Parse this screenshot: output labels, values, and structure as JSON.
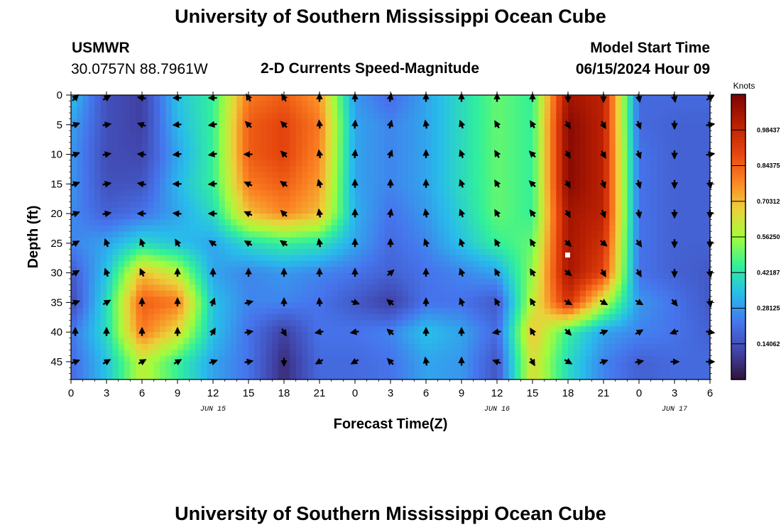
{
  "header": {
    "title": "University of Southern Mississippi Ocean Cube",
    "station_name": "USMWR",
    "station_coords": "30.0757N  88.7961W",
    "product": "2-D Currents Speed-Magnitude",
    "model_start_label": "Model Start Time",
    "model_start_value": "06/15/2024 Hour 09"
  },
  "footer": {
    "title": "University of Southern Mississippi Ocean Cube"
  },
  "chart_data": {
    "type": "heatmap",
    "title": "2-D Currents Speed-Magnitude",
    "xlabel": "Forecast Time(Z)",
    "ylabel": "Depth (ft)",
    "x_tick_labels": [
      "0",
      "3",
      "6",
      "9",
      "12",
      "15",
      "18",
      "21",
      "0",
      "3",
      "6",
      "9",
      "12",
      "15",
      "18",
      "21",
      "0",
      "3",
      "6"
    ],
    "x_range_hours": [
      0,
      54
    ],
    "date_labels": [
      {
        "label": "JUN 15",
        "hour": 12
      },
      {
        "label": "JUN 16",
        "hour": 36
      },
      {
        "label": "JUN 17",
        "hour": 51
      }
    ],
    "y_ticks": [
      0,
      5,
      10,
      15,
      20,
      25,
      30,
      35,
      40,
      45
    ],
    "y_range": [
      0,
      48
    ],
    "colorbar": {
      "label": "Knots",
      "range": [
        0,
        1.125
      ],
      "tick_labels": [
        "0.98437",
        "0.84375",
        "0.70312",
        "0.56250",
        "0.42187",
        "0.28125",
        "0.14062"
      ],
      "tick_values": [
        0.98437,
        0.84375,
        0.70312,
        0.5625,
        0.42187,
        0.28125,
        0.14062
      ]
    },
    "grid_times_hours": [
      0,
      3,
      6,
      9,
      12,
      15,
      18,
      21,
      24,
      27,
      30,
      33,
      36,
      39,
      42,
      45,
      48,
      51,
      54
    ],
    "grid_depths_ft": [
      0,
      5,
      10,
      15,
      20,
      25,
      30,
      35,
      40,
      45
    ],
    "speed_knots": [
      [
        0.35,
        0.14,
        0.1,
        0.35,
        0.45,
        0.8,
        0.85,
        0.75,
        0.28,
        0.2,
        0.3,
        0.4,
        0.5,
        0.45,
        1.05,
        1.0,
        0.2,
        0.2,
        0.2
      ],
      [
        0.3,
        0.14,
        0.1,
        0.33,
        0.45,
        0.85,
        0.9,
        0.8,
        0.3,
        0.25,
        0.3,
        0.4,
        0.5,
        0.45,
        1.1,
        1.0,
        0.2,
        0.18,
        0.18
      ],
      [
        0.28,
        0.13,
        0.12,
        0.3,
        0.45,
        0.85,
        0.9,
        0.78,
        0.3,
        0.25,
        0.3,
        0.4,
        0.5,
        0.45,
        1.1,
        1.0,
        0.22,
        0.18,
        0.18
      ],
      [
        0.28,
        0.14,
        0.15,
        0.33,
        0.45,
        0.8,
        0.85,
        0.75,
        0.3,
        0.25,
        0.3,
        0.4,
        0.5,
        0.45,
        1.1,
        1.0,
        0.22,
        0.18,
        0.18
      ],
      [
        0.26,
        0.18,
        0.22,
        0.3,
        0.4,
        0.7,
        0.78,
        0.7,
        0.32,
        0.22,
        0.28,
        0.38,
        0.5,
        0.45,
        1.05,
        1.0,
        0.22,
        0.18,
        0.18
      ],
      [
        0.25,
        0.3,
        0.4,
        0.35,
        0.3,
        0.4,
        0.45,
        0.42,
        0.3,
        0.2,
        0.25,
        0.35,
        0.45,
        0.5,
        1.05,
        0.95,
        0.22,
        0.18,
        0.18
      ],
      [
        0.16,
        0.35,
        0.7,
        0.6,
        0.3,
        0.25,
        0.28,
        0.25,
        0.22,
        0.18,
        0.22,
        0.25,
        0.3,
        0.55,
        1.05,
        0.9,
        0.22,
        0.18,
        0.16
      ],
      [
        0.12,
        0.4,
        0.85,
        0.8,
        0.35,
        0.25,
        0.25,
        0.22,
        0.16,
        0.1,
        0.22,
        0.22,
        0.16,
        0.6,
        0.95,
        0.6,
        0.28,
        0.22,
        0.16
      ],
      [
        0.22,
        0.4,
        0.8,
        0.65,
        0.35,
        0.22,
        0.1,
        0.22,
        0.22,
        0.25,
        0.35,
        0.3,
        0.2,
        0.7,
        0.45,
        0.3,
        0.25,
        0.22,
        0.18
      ],
      [
        0.2,
        0.35,
        0.6,
        0.45,
        0.3,
        0.22,
        0.06,
        0.2,
        0.2,
        0.22,
        0.3,
        0.28,
        0.15,
        0.65,
        0.4,
        0.25,
        0.18,
        0.2,
        0.2
      ]
    ],
    "vector_angles_deg": [
      [
        45,
        30,
        170,
        180,
        180,
        120,
        120,
        90,
        90,
        80,
        90,
        90,
        90,
        90,
        270,
        270,
        280,
        280,
        30
      ],
      [
        20,
        10,
        160,
        185,
        190,
        135,
        135,
        95,
        85,
        75,
        100,
        110,
        120,
        120,
        300,
        300,
        290,
        270,
        10
      ],
      [
        20,
        10,
        175,
        185,
        190,
        180,
        135,
        100,
        85,
        70,
        90,
        110,
        120,
        135,
        300,
        300,
        290,
        270,
        10
      ],
      [
        20,
        10,
        170,
        180,
        185,
        155,
        145,
        105,
        90,
        90,
        90,
        110,
        120,
        135,
        300,
        290,
        285,
        270,
        280
      ],
      [
        20,
        10,
        180,
        175,
        180,
        155,
        135,
        100,
        90,
        80,
        100,
        110,
        120,
        125,
        300,
        290,
        280,
        270,
        270
      ],
      [
        30,
        110,
        110,
        120,
        145,
        150,
        145,
        100,
        90,
        90,
        110,
        110,
        120,
        120,
        315,
        320,
        305,
        270,
        270
      ],
      [
        30,
        110,
        115,
        90,
        90,
        90,
        90,
        90,
        90,
        40,
        90,
        110,
        120,
        120,
        320,
        300,
        300,
        270,
        280
      ],
      [
        20,
        30,
        90,
        90,
        70,
        15,
        90,
        95,
        340,
        140,
        90,
        110,
        120,
        120,
        330,
        330,
        330,
        310,
        280
      ],
      [
        90,
        90,
        90,
        90,
        60,
        10,
        300,
        190,
        190,
        140,
        90,
        90,
        190,
        120,
        315,
        20,
        30,
        200,
        350
      ],
      [
        20,
        30,
        30,
        30,
        20,
        10,
        270,
        210,
        210,
        135,
        100,
        90,
        160,
        300,
        330,
        20,
        10,
        0,
        0
      ]
    ]
  }
}
